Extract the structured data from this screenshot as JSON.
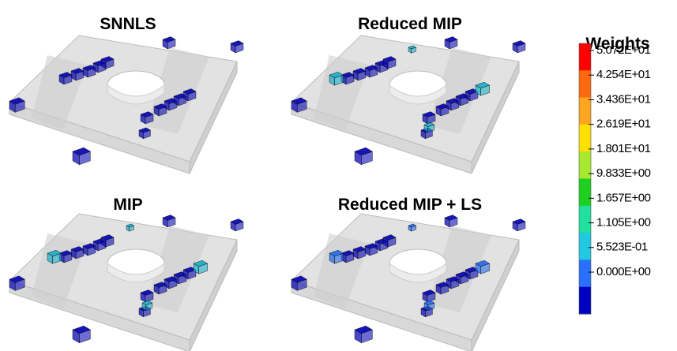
{
  "panels": [
    {
      "title": "SNNLS"
    },
    {
      "title": "Reduced MIP"
    },
    {
      "title": "MIP"
    },
    {
      "title": "Reduced MIP + LS"
    }
  ],
  "legend": {
    "title": "Weights",
    "labels": [
      "5.072E+01",
      "4.254E+01",
      "3.436E+01",
      "2.619E+01",
      "1.801E+01",
      "9.833E+00",
      "1.657E+00",
      "1.105E+00",
      "5.523E-01",
      "0.000E+00"
    ]
  }
}
